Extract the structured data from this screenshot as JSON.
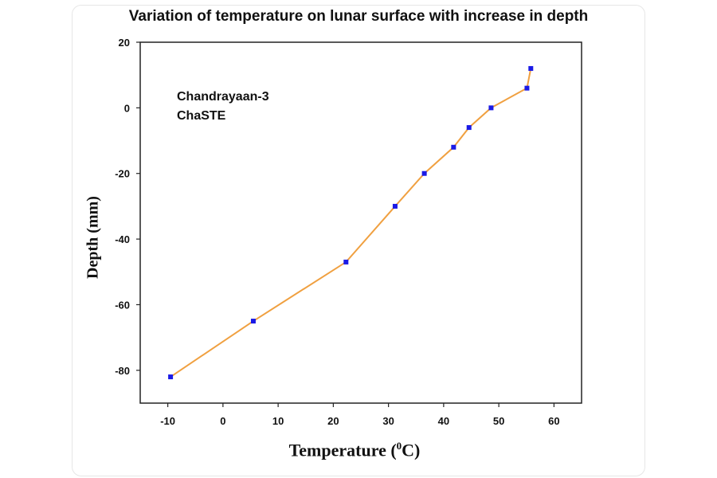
{
  "chart_data": {
    "type": "line",
    "title": "Variation of temperature on lunar surface with increase in depth",
    "xlabel": "Temperature (",
    "xlabel_sup": "0",
    "xlabel_end": "C)",
    "ylabel": "Depth (mm)",
    "annotation": [
      "Chandrayaan-3",
      "ChaSTE"
    ],
    "xlim": [
      -15,
      65
    ],
    "ylim": [
      -90,
      20
    ],
    "xticks": [
      -10,
      0,
      10,
      20,
      30,
      40,
      50,
      60
    ],
    "yticks": [
      20,
      0,
      -20,
      -40,
      -60,
      -80
    ],
    "grid": false,
    "series": [
      {
        "x": [
          -9.5,
          5.5,
          22.3,
          31.2,
          36.5,
          41.8,
          44.6,
          48.6,
          55.1,
          55.8
        ],
        "y": [
          -82,
          -65,
          -47,
          -30,
          -20,
          -12,
          -6,
          0,
          6,
          12
        ],
        "line_color": "#f0a040",
        "marker_color": "#1a1ae6"
      }
    ]
  }
}
